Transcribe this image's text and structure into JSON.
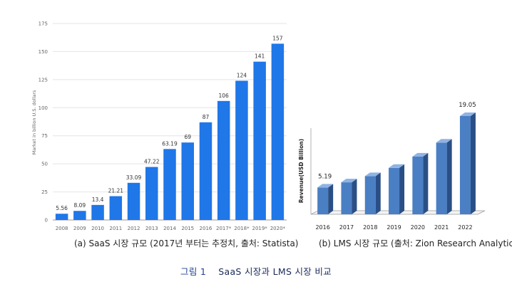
{
  "colors": {
    "chart_a_bar": "#1f77e8",
    "chart_b_bar_front": "#4a7fc4",
    "chart_b_bar_side": "#2a4f86",
    "chart_b_bar_top": "#8fb3e3",
    "axis_text": "#666666",
    "caption_accent": "#1f3f8f"
  },
  "captions": {
    "chart_a": "(a) SaaS 시장 규모 (2017년 부터는 추정치, 출처: Statista)",
    "chart_b": "(b) LMS 시장 규모 (출처: Zion Research Analytics)",
    "figure_label": "그림 1",
    "figure_text": "SaaS 시장과 LMS 시장 비교"
  },
  "chart_data": [
    {
      "type": "bar",
      "title": "",
      "categories": [
        "2008",
        "2009",
        "2010",
        "2011",
        "2012",
        "2013",
        "2014",
        "2015",
        "2016",
        "2017*",
        "2018*",
        "2019*",
        "2020*"
      ],
      "values": [
        5.56,
        8.09,
        13.4,
        21.21,
        33.09,
        47.22,
        63.19,
        69,
        87,
        106,
        124,
        141,
        157
      ],
      "data_labels": [
        "5.56",
        "8.09",
        "13.4",
        "21.21",
        "33.09",
        "47.22",
        "63.19",
        "69",
        "87",
        "106",
        "124",
        "141",
        "157"
      ],
      "xlabel": "",
      "ylabel": "Market in billion U.S. dollars",
      "ylim": [
        0,
        175
      ],
      "yticks": [
        0,
        25,
        50,
        75,
        100,
        125,
        150,
        175
      ],
      "grid": true,
      "legend": "none"
    },
    {
      "type": "bar",
      "style": "3d",
      "title": "",
      "categories": [
        "2016",
        "2017",
        "2018",
        "2019",
        "2020",
        "2021",
        "2022"
      ],
      "values": [
        5.19,
        6.2,
        7.4,
        9.0,
        11.2,
        13.9,
        19.05
      ],
      "data_labels": [
        "5.19",
        "",
        "",
        "",
        "",
        "",
        "19.05"
      ],
      "xlabel": "",
      "ylabel": "Revenue(USD Billion)",
      "ylim": [
        0,
        20
      ],
      "grid": false,
      "legend": "none"
    }
  ]
}
